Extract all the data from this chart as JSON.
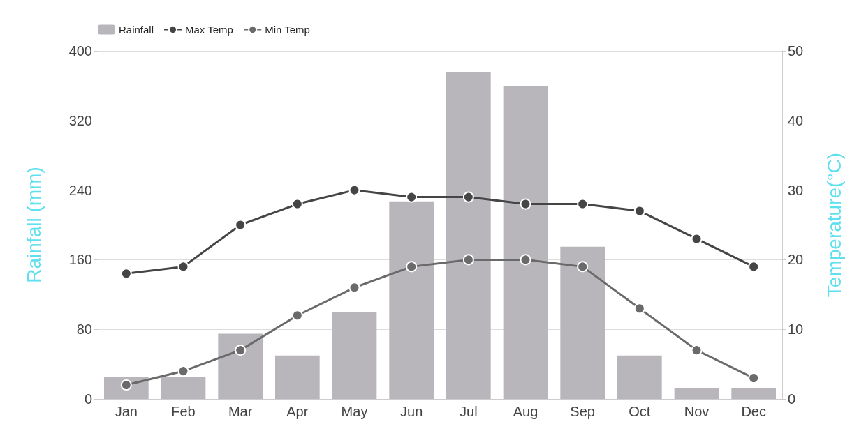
{
  "chart_data": {
    "type": "bar",
    "categories": [
      "Jan",
      "Feb",
      "Mar",
      "Apr",
      "May",
      "Jun",
      "Jul",
      "Aug",
      "Sep",
      "Oct",
      "Nov",
      "Dec"
    ],
    "series": [
      {
        "name": "Rainfall",
        "color": "#b8b6bb",
        "values": [
          25,
          25,
          75,
          50,
          100,
          227,
          376,
          360,
          175,
          50,
          12,
          12
        ]
      },
      {
        "name": "Max Temp",
        "type": "line",
        "axis": "y2",
        "color": "#454545",
        "marker": "circle",
        "values": [
          18,
          19,
          25,
          28,
          30,
          29,
          29,
          28,
          28,
          27,
          23,
          19
        ]
      },
      {
        "name": "Min Temp",
        "type": "line",
        "axis": "y2",
        "color": "#6a6a6a",
        "marker": "circle",
        "values": [
          2,
          4,
          7,
          12,
          16,
          19,
          20,
          20,
          19,
          13,
          7,
          3
        ]
      }
    ],
    "ylabel": "Rainfall (mm)",
    "y2label": "Temperature(°C)",
    "ylim": [
      0,
      400
    ],
    "yticks": [
      0,
      80,
      160,
      240,
      320,
      400
    ],
    "y2lim": [
      0,
      50
    ],
    "y2ticks": [
      0,
      10,
      20,
      30,
      40,
      50
    ],
    "grid": "y",
    "legend": "top left"
  }
}
